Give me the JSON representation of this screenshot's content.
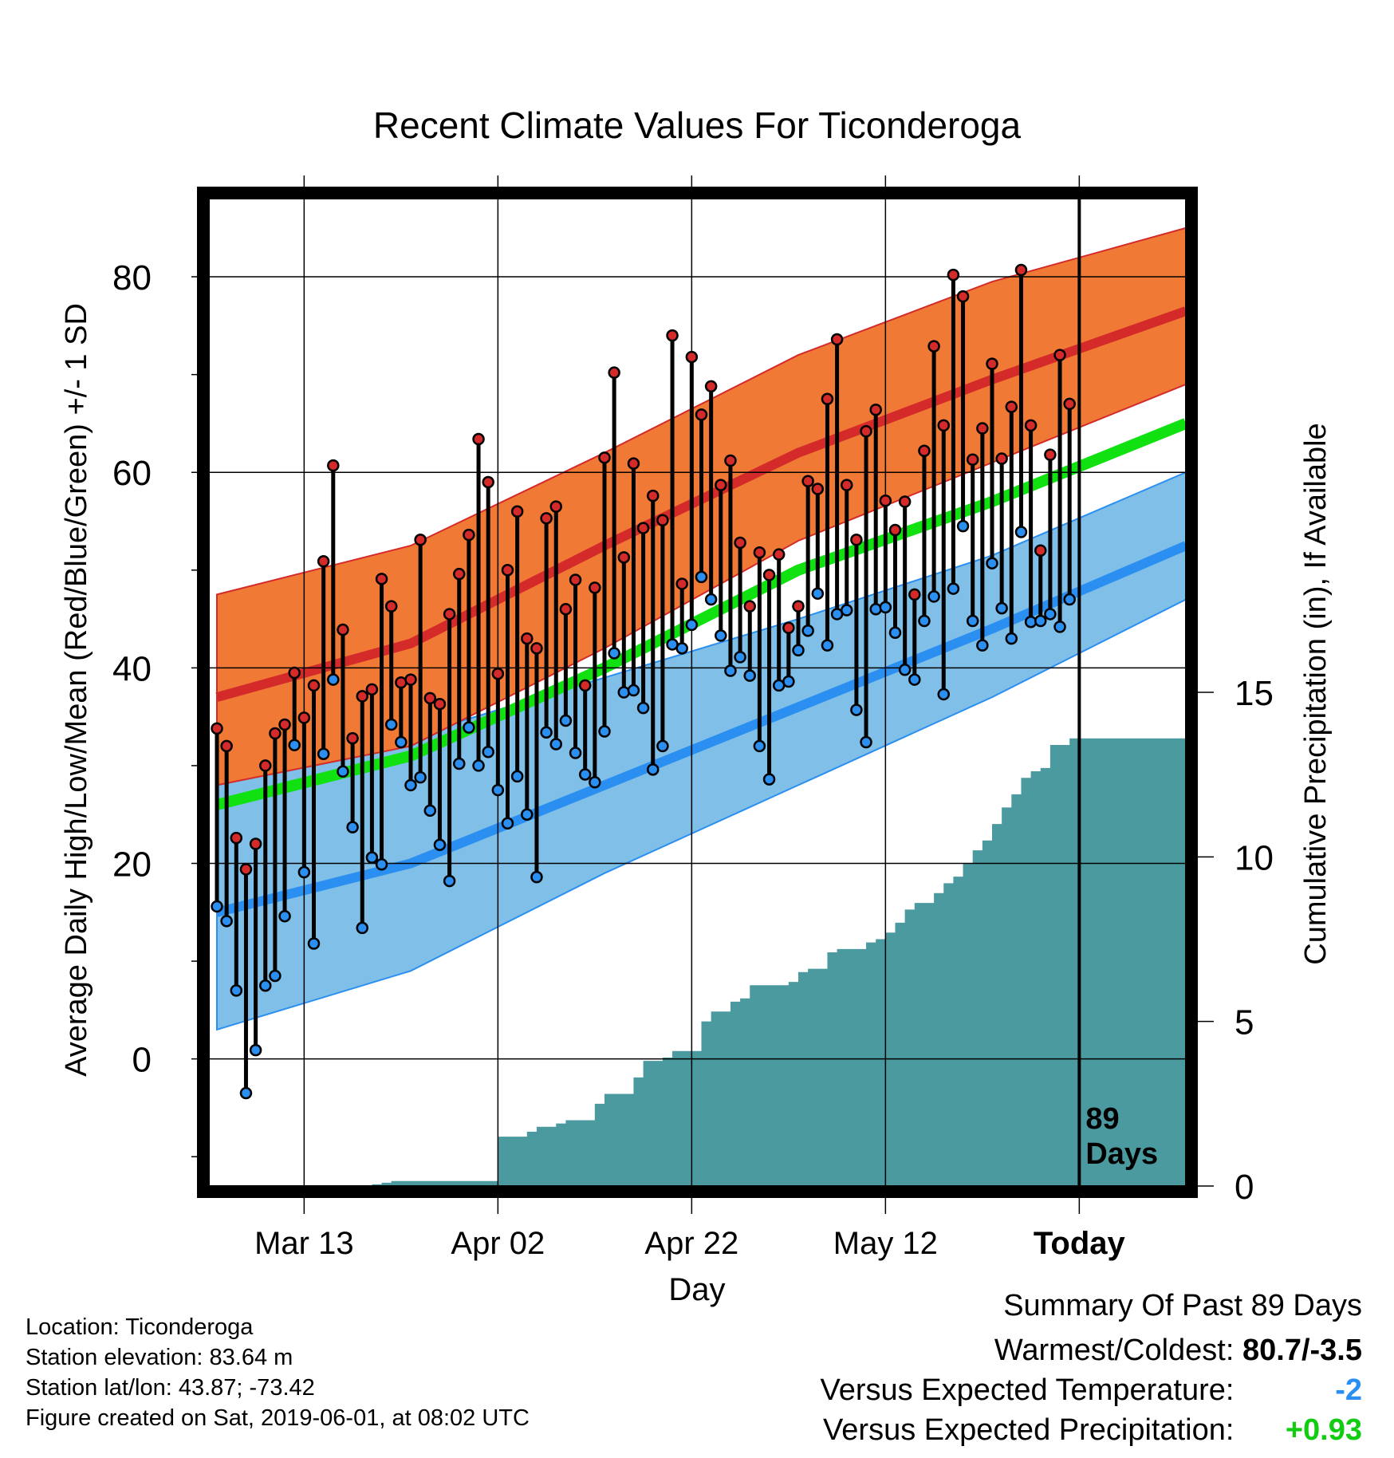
{
  "chart_data": {
    "type": "line",
    "title": "Recent Climate Values For Ticonderoga",
    "xlabel": "Day",
    "ylabel": "Average Daily High/Low/Mean (Red/Blue/Green) +/- 1 SD",
    "y2label": "Cumulative Precipitation (in), If Available",
    "x_tick_labels": [
      "Mar 13",
      "Apr 02",
      "Apr 22",
      "May 12",
      "Today"
    ],
    "y_ticks": [
      "0",
      "20",
      "40",
      "60",
      "80"
    ],
    "y2_ticks": [
      "0",
      "5",
      "10",
      "15"
    ],
    "ylim": [
      -13,
      88
    ],
    "y2lim": [
      0,
      30
    ],
    "days_label": "89\nDays",
    "colors": {
      "high_band": "#f07a35",
      "high_line": "#d42a2a",
      "low_band": "#7fbfe8",
      "low_line": "#2a8ff0",
      "mean_line": "#11e011",
      "precip_fill": "#4a9aa0",
      "high_dot": "#d42a2a",
      "low_dot": "#2a8ff0"
    },
    "normals": {
      "x": [
        0,
        20,
        40,
        60,
        80,
        100
      ],
      "high_mean": [
        37,
        42.5,
        52.5,
        62,
        69.5,
        76.5
      ],
      "high_upper": [
        47.5,
        52.5,
        62,
        72,
        79.5,
        85
      ],
      "high_lower": [
        28,
        32,
        42,
        53,
        61,
        69
      ],
      "low_mean": [
        15,
        20,
        28,
        36,
        44,
        52.5
      ],
      "low_upper": [
        28,
        33,
        39,
        45,
        51.5,
        60
      ],
      "low_lower": [
        3,
        9,
        19,
        28,
        37,
        47
      ],
      "mean": [
        26,
        31,
        40,
        50,
        57,
        65
      ]
    },
    "daily": {
      "x": [
        0,
        1,
        2,
        3,
        4,
        5,
        6,
        7,
        8,
        9,
        10,
        11,
        12,
        13,
        14,
        15,
        16,
        17,
        18,
        19,
        20,
        21,
        22,
        23,
        24,
        25,
        26,
        27,
        28,
        29,
        30,
        31,
        32,
        33,
        34,
        35,
        36,
        37,
        38,
        39,
        40,
        41,
        42,
        43,
        44,
        45,
        46,
        47,
        48,
        49,
        50,
        51,
        52,
        53,
        54,
        55,
        56,
        57,
        58,
        59,
        60,
        61,
        62,
        63,
        64,
        65,
        66,
        67,
        68,
        69,
        70,
        71,
        72,
        73,
        74,
        75,
        76,
        77,
        78,
        79,
        80,
        81,
        82,
        83,
        84,
        85,
        86,
        87,
        88
      ],
      "high": [
        33.8,
        32,
        22.6,
        19.4,
        22,
        30,
        33.3,
        34.2,
        39.5,
        34.9,
        38.2,
        50.9,
        60.7,
        43.9,
        32.8,
        37.1,
        37.8,
        49.1,
        46.3,
        38.5,
        38.8,
        53.1,
        36.9,
        36.3,
        45.5,
        49.6,
        53.6,
        63.4,
        59,
        39.4,
        50,
        56,
        43,
        42,
        55.3,
        56.5,
        46,
        49,
        38.2,
        48.2,
        61.5,
        70.2,
        51.3,
        60.9,
        54.3,
        57.6,
        55.1,
        74,
        48.6,
        71.8,
        65.9,
        68.8,
        58.7,
        61.2,
        52.8,
        46.3,
        51.8,
        49.5,
        51.6,
        44.1,
        46.3,
        59.1,
        58.3,
        67.5,
        73.6,
        58.7,
        53.1,
        64.2,
        66.4,
        57.1,
        54.1,
        57,
        47.5,
        62.2,
        72.9,
        64.8,
        80.2,
        78,
        61.3,
        64.5,
        71.1,
        61.4,
        66.7,
        80.7,
        64.8,
        52,
        61.8,
        72,
        67
      ],
      "low": [
        15.6,
        14.1,
        7,
        -3.5,
        0.9,
        7.5,
        8.5,
        14.6,
        32.1,
        19.1,
        11.8,
        31.2,
        38.8,
        29.4,
        23.7,
        13.4,
        20.6,
        19.9,
        34.2,
        32.4,
        28,
        28.8,
        25.4,
        21.9,
        18.2,
        30.2,
        33.9,
        30,
        31.4,
        27.5,
        24.1,
        28.9,
        25,
        18.6,
        33.4,
        32.2,
        34.6,
        31.3,
        29.1,
        28.3,
        33.5,
        41.5,
        37.5,
        37.7,
        35.9,
        29.6,
        32,
        42.4,
        42,
        44.4,
        49.3,
        47,
        43.3,
        39.7,
        41.1,
        39.2,
        32,
        28.6,
        38.2,
        38.6,
        41.8,
        43.8,
        47.6,
        42.3,
        45.5,
        45.9,
        35.7,
        32.4,
        46,
        46.2,
        43.6,
        39.8,
        38.8,
        44.8,
        47.3,
        37.3,
        48.1,
        54.5,
        44.8,
        42.3,
        50.7,
        46.1,
        43,
        53.9,
        44.7,
        44.8,
        45.5,
        44.2,
        47
      ]
    },
    "precip": {
      "x": [
        0,
        9,
        16,
        17,
        18,
        29,
        32,
        33,
        35,
        36,
        39,
        40,
        43,
        44,
        46,
        47,
        50,
        51,
        53,
        54,
        55,
        59,
        60,
        61,
        63,
        64,
        67,
        68,
        69,
        70,
        71,
        72,
        74,
        75,
        76,
        77,
        78,
        79,
        80,
        81,
        82,
        83,
        84,
        85,
        86,
        88
      ],
      "y": [
        0,
        0,
        0.05,
        0.1,
        0.15,
        1.5,
        1.65,
        1.8,
        1.9,
        2,
        2.5,
        2.8,
        3.3,
        3.8,
        3.9,
        4.1,
        5,
        5.3,
        5.6,
        5.7,
        6.1,
        6.2,
        6.5,
        6.6,
        7.1,
        7.2,
        7.4,
        7.5,
        7.7,
        8,
        8.4,
        8.6,
        8.9,
        9.2,
        9.4,
        9.8,
        10.2,
        10.5,
        11,
        11.5,
        11.9,
        12.4,
        12.6,
        12.7,
        13.4,
        13.6
      ]
    },
    "legend": "none",
    "grid": true
  },
  "info": {
    "location": "Location: Ticonderoga",
    "elevation": "Station elevation: 83.64 m",
    "latlon": "Station lat/lon: 43.87; -73.42",
    "created": "Figure created on Sat, 2019-06-01, at 08:02 UTC"
  },
  "summary": {
    "title": "Summary Of Past 89 Days",
    "warmest_label": "Warmest/Coldest:",
    "warmest_value": "80.7/-3.5",
    "temp_label": "Versus Expected Temperature:",
    "temp_value": "-2",
    "temp_color": "#2a8ff0",
    "precip_label": "Versus Expected Precipitation:",
    "precip_value": "+0.93",
    "precip_color": "#11cc11"
  }
}
